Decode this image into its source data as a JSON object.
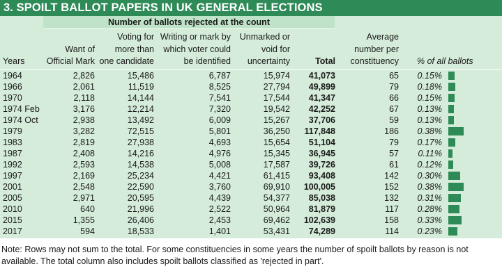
{
  "title": "3. SPOILT BALLOT PAPERS IN UK GENERAL ELECTIONS",
  "group_header": "Number of ballots rejected at the count",
  "headers": {
    "years": "Years",
    "want_mark": [
      "Want of",
      "Official Mark"
    ],
    "voting_for": [
      "Voting for",
      "more than",
      "one candidate"
    ],
    "writing": [
      "Writing or mark by",
      "which voter could",
      "be identified"
    ],
    "unmarked": [
      "Unmarked or",
      "void for",
      "uncertainty"
    ],
    "total": "Total",
    "average": [
      "Average",
      "number per",
      "constituency"
    ],
    "pct": "% of all ballots"
  },
  "colors": {
    "title_bg": "#2e8b57",
    "panel_bg": "#d4ecd9",
    "header_bg": "#bfe3c8",
    "bar": "#2e8b57"
  },
  "rows": [
    {
      "year": "1964",
      "want_mark": "2,826",
      "voting_for": "15,486",
      "writing": "6,787",
      "unmarked": "15,974",
      "total": "41,073",
      "average": "65",
      "pct": "0.15%",
      "pct_value": 0.15
    },
    {
      "year": "1966",
      "want_mark": "2,061",
      "voting_for": "11,519",
      "writing": "8,525",
      "unmarked": "27,794",
      "total": "49,899",
      "average": "79",
      "pct": "0.18%",
      "pct_value": 0.18
    },
    {
      "year": "1970",
      "want_mark": "2,118",
      "voting_for": "14,144",
      "writing": "7,541",
      "unmarked": "17,544",
      "total": "41,347",
      "average": "66",
      "pct": "0.15%",
      "pct_value": 0.15
    },
    {
      "year": "1974 Feb",
      "want_mark": "3,176",
      "voting_for": "12,214",
      "writing": "7,320",
      "unmarked": "19,542",
      "total": "42,252",
      "average": "67",
      "pct": "0.13%",
      "pct_value": 0.13
    },
    {
      "year": "1974 Oct",
      "want_mark": "2,938",
      "voting_for": "13,492",
      "writing": "6,009",
      "unmarked": "15,267",
      "total": "37,706",
      "average": "59",
      "pct": "0.13%",
      "pct_value": 0.13
    },
    {
      "year": "1979",
      "want_mark": "3,282",
      "voting_for": "72,515",
      "writing": "5,801",
      "unmarked": "36,250",
      "total": "117,848",
      "average": "186",
      "pct": "0.38%",
      "pct_value": 0.38
    },
    {
      "year": "1983",
      "want_mark": "2,819",
      "voting_for": "27,938",
      "writing": "4,693",
      "unmarked": "15,654",
      "total": "51,104",
      "average": "79",
      "pct": "0.17%",
      "pct_value": 0.17
    },
    {
      "year": "1987",
      "want_mark": "2,408",
      "voting_for": "14,216",
      "writing": "4,976",
      "unmarked": "15,345",
      "total": "36,945",
      "average": "57",
      "pct": "0.11%",
      "pct_value": 0.11
    },
    {
      "year": "1992",
      "want_mark": "2,593",
      "voting_for": "14,538",
      "writing": "5,008",
      "unmarked": "17,587",
      "total": "39,726",
      "average": "61",
      "pct": "0.12%",
      "pct_value": 0.12
    },
    {
      "year": "1997",
      "want_mark": "2,169",
      "voting_for": "25,234",
      "writing": "4,421",
      "unmarked": "61,415",
      "total": "93,408",
      "average": "142",
      "pct": "0.30%",
      "pct_value": 0.3
    },
    {
      "year": "2001",
      "want_mark": "2,548",
      "voting_for": "22,590",
      "writing": "3,760",
      "unmarked": "69,910",
      "total": "100,005",
      "average": "152",
      "pct": "0.38%",
      "pct_value": 0.38
    },
    {
      "year": "2005",
      "want_mark": "2,971",
      "voting_for": "20,595",
      "writing": "4,439",
      "unmarked": "54,377",
      "total": "85,038",
      "average": "132",
      "pct": "0.31%",
      "pct_value": 0.31
    },
    {
      "year": "2010",
      "want_mark": "640",
      "voting_for": "21,996",
      "writing": "2,522",
      "unmarked": "50,964",
      "total": "81,879",
      "average": "117",
      "pct": "0.28%",
      "pct_value": 0.28
    },
    {
      "year": "2015",
      "want_mark": "1,355",
      "voting_for": "26,406",
      "writing": "2,453",
      "unmarked": "69,462",
      "total": "102,639",
      "average": "158",
      "pct": "0.33%",
      "pct_value": 0.33
    },
    {
      "year": "2017",
      "want_mark": "594",
      "voting_for": "18,533",
      "writing": "1,401",
      "unmarked": "53,431",
      "total": "74,289",
      "average": "114",
      "pct": "0.23%",
      "pct_value": 0.23
    }
  ],
  "note": "Note: Rows may not sum to the total. For some constituencies in some years the number of spoilt ballots by reason is not available. The total column also includes spoilt ballots classified as 'rejected in part'."
}
